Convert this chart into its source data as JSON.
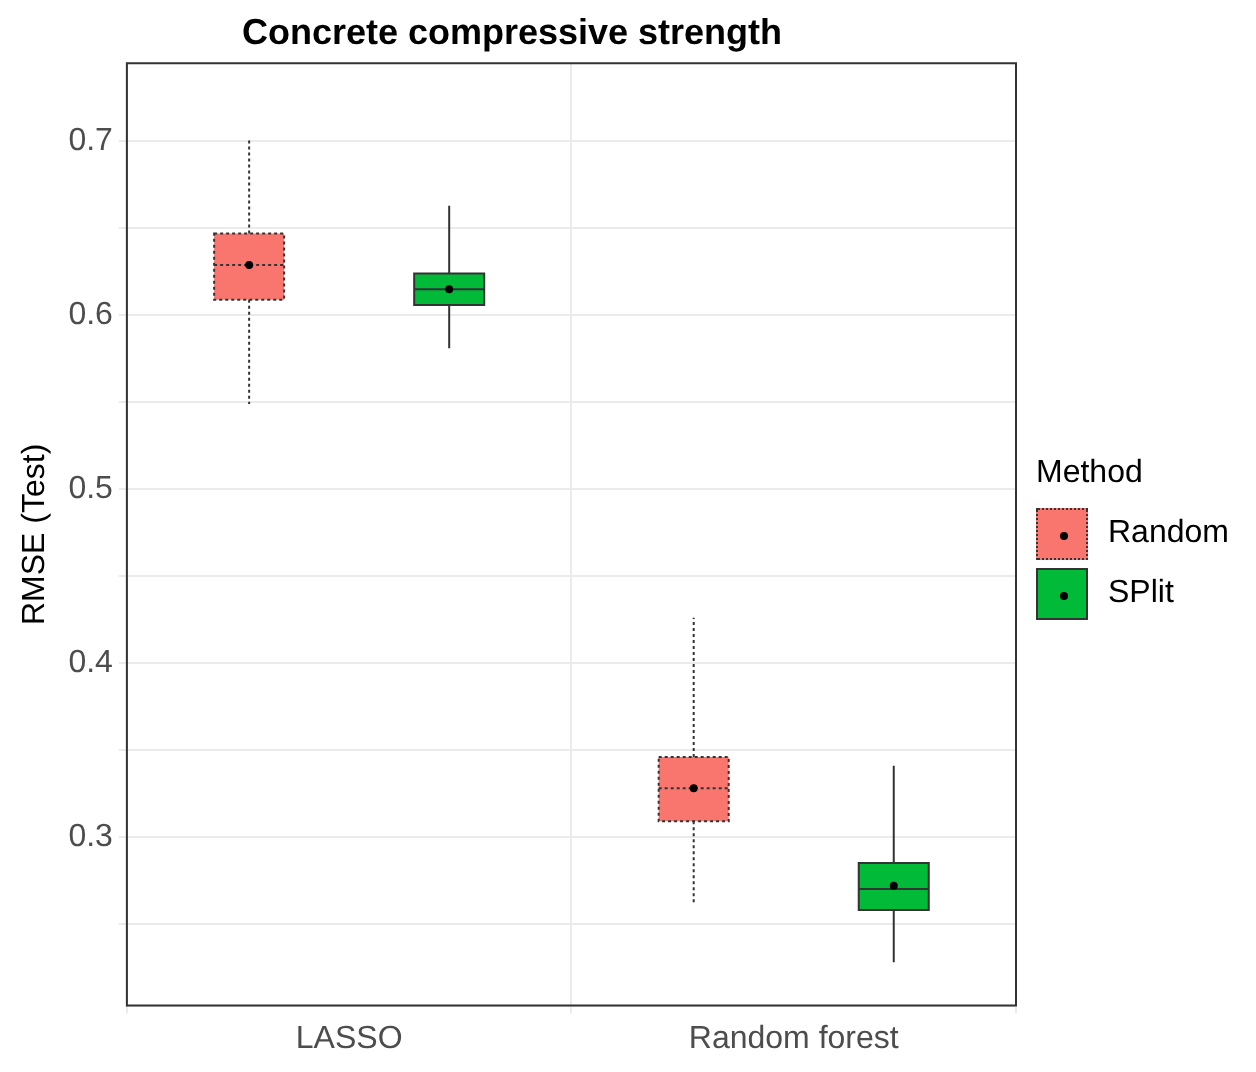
{
  "chart_data": {
    "type": "box",
    "title": "Concrete compressive strength",
    "ylabel": "RMSE (Test)",
    "legend_title": "Method",
    "categories": [
      "LASSO",
      "Random forest"
    ],
    "series": [
      {
        "name": "Random",
        "color": "#f8766d",
        "line_style": "dotted",
        "boxes": [
          {
            "low": 0.549,
            "q1": 0.609,
            "median": 0.629,
            "q3": 0.647,
            "high": 0.701,
            "mean": 0.629
          },
          {
            "low": 0.262,
            "q1": 0.309,
            "median": 0.328,
            "q3": 0.346,
            "high": 0.426,
            "mean": 0.328
          }
        ]
      },
      {
        "name": "SPlit",
        "color": "#00ba38",
        "line_style": "solid",
        "boxes": [
          {
            "low": 0.581,
            "q1": 0.606,
            "median": 0.615,
            "q3": 0.624,
            "high": 0.663,
            "mean": 0.615
          },
          {
            "low": 0.228,
            "q1": 0.258,
            "median": 0.27,
            "q3": 0.285,
            "high": 0.341,
            "mean": 0.272
          }
        ]
      }
    ],
    "ylim": [
      0.203,
      0.745
    ],
    "yticks": [
      {
        "value": 0.25,
        "label": null
      },
      0.3,
      {
        "value": 0.35,
        "label": null
      },
      0.4,
      {
        "value": 0.45,
        "label": null
      },
      0.5,
      {
        "value": 0.55,
        "label": null
      },
      0.6,
      {
        "value": 0.65,
        "label": null
      },
      0.7
    ],
    "grid": true,
    "legend": "right"
  }
}
